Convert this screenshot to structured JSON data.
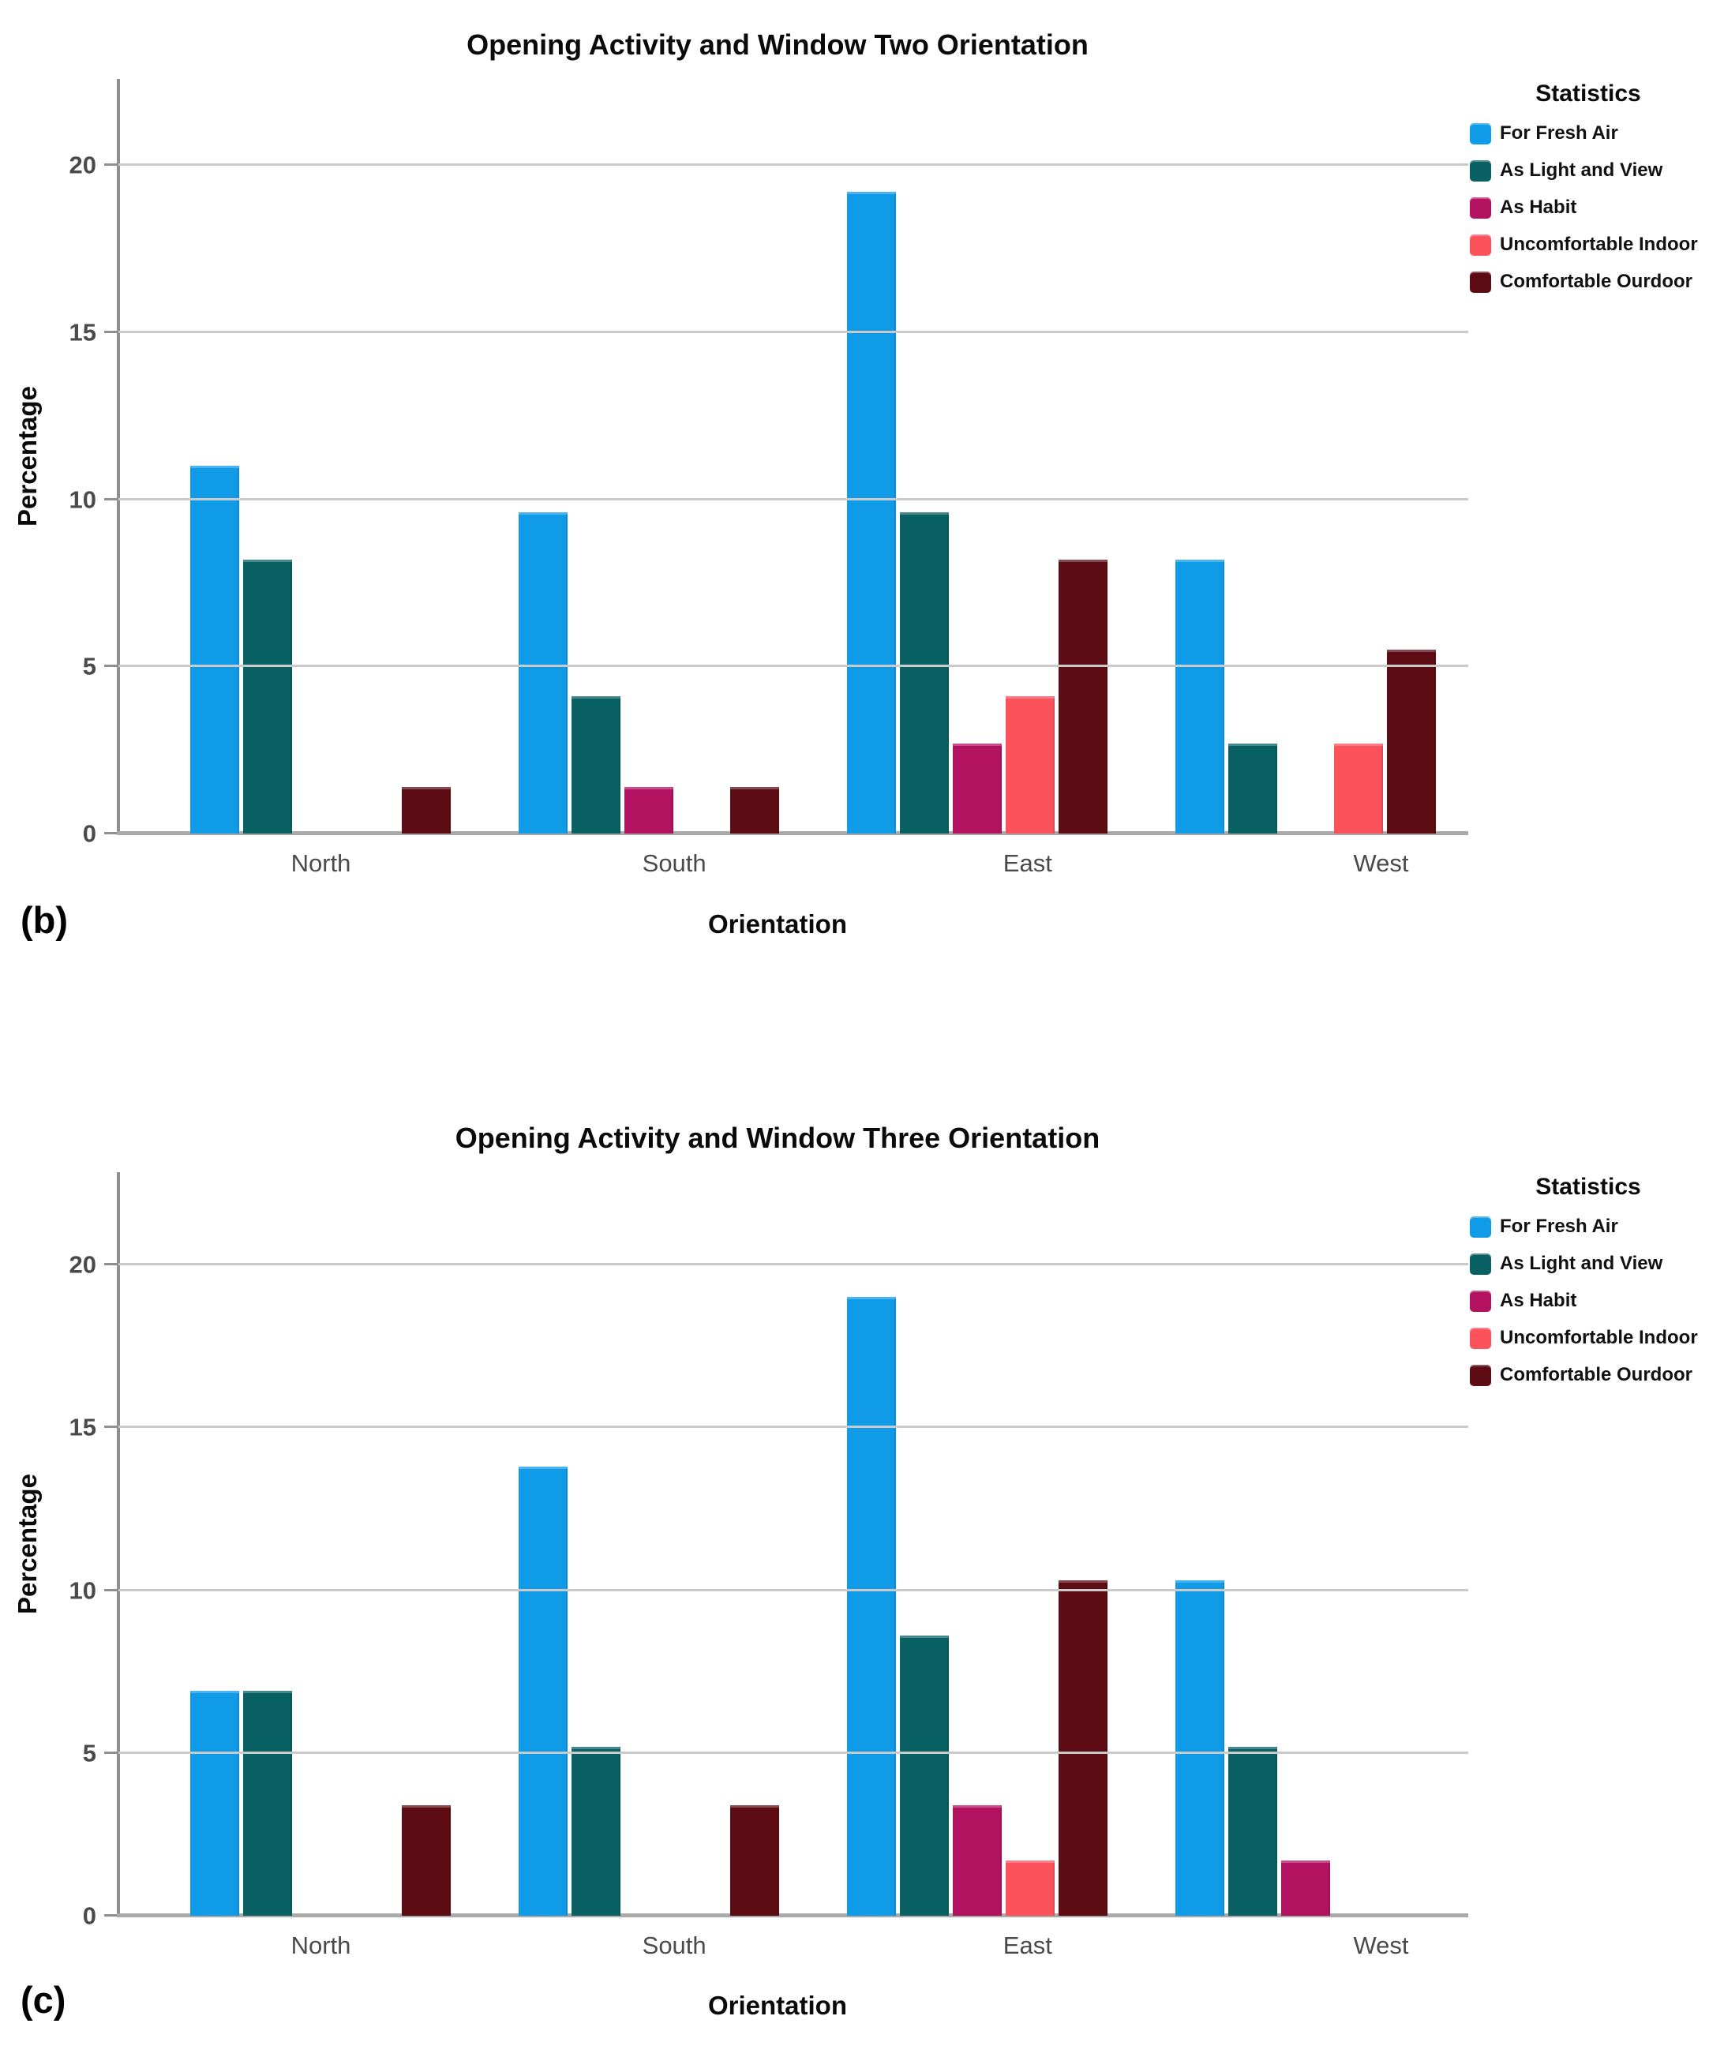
{
  "chart_data": [
    {
      "type": "bar",
      "panel_label": "(b)",
      "title": "Opening Activity and Window Two Orientation",
      "xlabel": "Orientation",
      "ylabel": "Percentage",
      "categories": [
        "North",
        "South",
        "East",
        "West"
      ],
      "y_ticks": [
        0,
        5,
        10,
        15,
        20
      ],
      "ylim": [
        0,
        22.6
      ],
      "grid": true,
      "legend": {
        "title": "Statistics",
        "position": "top-right",
        "entries": [
          {
            "label": "For Fresh Air",
            "color": "#0F9BE8"
          },
          {
            "label": "As Light and View",
            "color": "#0A6164"
          },
          {
            "label": "As Habit",
            "color": "#B31260"
          },
          {
            "label": "Uncomfortable Indoor",
            "color": "#FB525C"
          },
          {
            "label": "Comfortable Ourdoor",
            "color": "#5E0C13"
          }
        ]
      },
      "series": [
        {
          "name": "For Fresh Air",
          "color": "#0F9BE8",
          "values": [
            11.0,
            9.6,
            19.2,
            8.2
          ]
        },
        {
          "name": "As Light and View",
          "color": "#0A6164",
          "values": [
            8.2,
            4.1,
            9.6,
            2.7
          ]
        },
        {
          "name": "As Habit",
          "color": "#B31260",
          "values": [
            0,
            1.4,
            2.7,
            0
          ]
        },
        {
          "name": "Uncomfortable Indoor",
          "color": "#FB525C",
          "values": [
            0,
            0,
            4.1,
            2.7
          ]
        },
        {
          "name": "Comfortable Ourdoor",
          "color": "#5E0C13",
          "values": [
            1.4,
            1.4,
            8.2,
            5.5
          ]
        }
      ]
    },
    {
      "type": "bar",
      "panel_label": "(c)",
      "title": "Opening Activity and Window Three Orientation",
      "xlabel": "Orientation",
      "ylabel": "Percentage",
      "categories": [
        "North",
        "South",
        "East",
        "West"
      ],
      "y_ticks": [
        0,
        5,
        10,
        15,
        20
      ],
      "ylim": [
        0,
        22.8
      ],
      "grid": true,
      "legend": {
        "title": "Statistics",
        "position": "top-right",
        "entries": [
          {
            "label": "For Fresh Air",
            "color": "#0F9BE8"
          },
          {
            "label": "As Light and View",
            "color": "#0A6164"
          },
          {
            "label": "As Habit",
            "color": "#B31260"
          },
          {
            "label": "Uncomfortable Indoor",
            "color": "#FB525C"
          },
          {
            "label": "Comfortable Ourdoor",
            "color": "#5E0C13"
          }
        ]
      },
      "series": [
        {
          "name": "For Fresh Air",
          "color": "#0F9BE8",
          "values": [
            6.9,
            13.8,
            19.0,
            10.3
          ]
        },
        {
          "name": "As Light and View",
          "color": "#0A6164",
          "values": [
            6.9,
            5.2,
            8.6,
            5.2
          ]
        },
        {
          "name": "As Habit",
          "color": "#B31260",
          "values": [
            0,
            0,
            3.4,
            1.7
          ]
        },
        {
          "name": "Uncomfortable Indoor",
          "color": "#FB525C",
          "values": [
            0,
            0,
            1.7,
            0
          ]
        },
        {
          "name": "Comfortable Ourdoor",
          "color": "#5E0C13",
          "values": [
            3.4,
            3.4,
            10.3,
            0
          ]
        }
      ]
    }
  ]
}
